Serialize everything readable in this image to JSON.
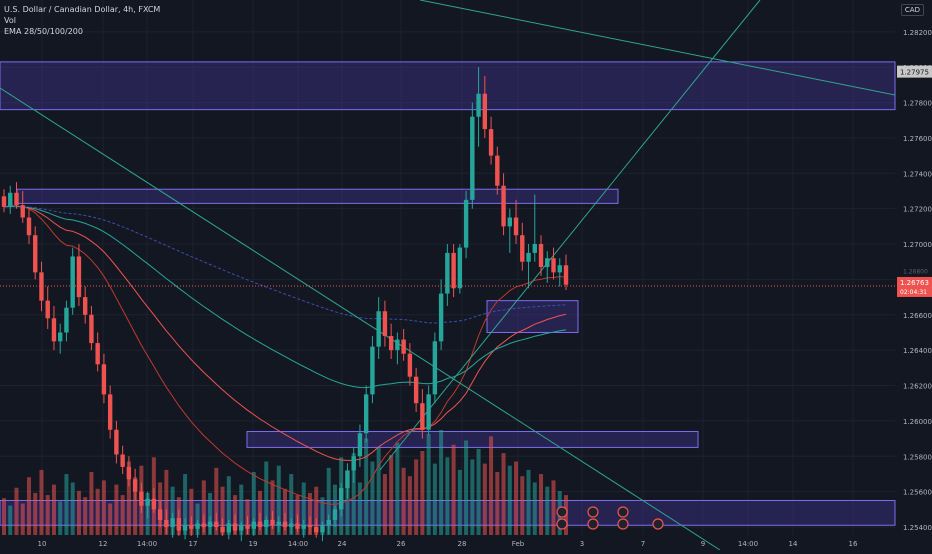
{
  "legend": {
    "symbol": "U.S. Dollar / Canadian Dollar, 4h, FXCM",
    "volume": "Vol",
    "ema": "EMA 28/50/100/200"
  },
  "currency_badge": "CAD",
  "colors": {
    "background": "#131722",
    "up": "#26a69a",
    "down": "#ef5350",
    "zone_fill": "#4a3aa8",
    "zone_stroke": "#7e6cf0",
    "ema28": "#c0392b",
    "ema50": "#ef5350",
    "ema100": "#26a69a",
    "ema200": "#3a4fb0",
    "trendline": "#2ea58e",
    "grid": "#1e222d",
    "axis_text": "#b2b5be"
  },
  "chart_data": {
    "type": "candlestick",
    "symbol": "U.S. Dollar / Canadian Dollar",
    "interval": "4h",
    "source": "FXCM",
    "y_axis": {
      "tick_labels": [
        "1.28200",
        "1.28000",
        "1.27800",
        "1.27600",
        "1.27400",
        "1.27200",
        "1.27000",
        "1.26800",
        "1.26600",
        "1.26400",
        "1.26200",
        "1.26000",
        "1.25800",
        "1.25600",
        "1.25400"
      ],
      "range": [
        1.2527,
        1.2838
      ]
    },
    "x_axis": {
      "tick_labels": [
        "10",
        "12",
        "14:00",
        "17",
        "19",
        "14:00",
        "24",
        "26",
        "28",
        "Feb",
        "3",
        "7",
        "9",
        "14:00",
        "14",
        "16"
      ]
    },
    "price_labels": [
      {
        "value": "1.27975",
        "color": "#c8c8c8"
      },
      {
        "value": "1.26763",
        "countdown": "02:04:31",
        "color": "#ef5350"
      }
    ],
    "faint_label": "1.26800",
    "zones": [
      {
        "y_top": 1.2803,
        "y_bottom": 1.2776
      },
      {
        "y_top": 1.2731,
        "y_bottom": 1.2723
      },
      {
        "y_top": 1.2668,
        "y_bottom": 1.265
      },
      {
        "y_top": 1.2594,
        "y_bottom": 1.2585
      },
      {
        "y_top": 1.2555,
        "y_bottom": 1.2541
      }
    ],
    "candles": [
      [
        1.2727,
        1.2731,
        1.2718,
        1.2721
      ],
      [
        1.2721,
        1.2733,
        1.2717,
        1.2729
      ],
      [
        1.2729,
        1.2735,
        1.272,
        1.2722
      ],
      [
        1.2722,
        1.273,
        1.2712,
        1.2715
      ],
      [
        1.2715,
        1.272,
        1.27,
        1.2705
      ],
      [
        1.2705,
        1.271,
        1.268,
        1.2684
      ],
      [
        1.2684,
        1.269,
        1.2662,
        1.2668
      ],
      [
        1.2668,
        1.2676,
        1.2652,
        1.2658
      ],
      [
        1.2658,
        1.2665,
        1.264,
        1.2645
      ],
      [
        1.2645,
        1.2655,
        1.2638,
        1.265
      ],
      [
        1.265,
        1.2668,
        1.2645,
        1.2664
      ],
      [
        1.2664,
        1.2698,
        1.266,
        1.2693
      ],
      [
        1.2693,
        1.27,
        1.2665,
        1.267
      ],
      [
        1.267,
        1.2676,
        1.2655,
        1.266
      ],
      [
        1.266,
        1.2665,
        1.264,
        1.2644
      ],
      [
        1.2644,
        1.265,
        1.2628,
        1.2632
      ],
      [
        1.2632,
        1.2638,
        1.261,
        1.2615
      ],
      [
        1.2615,
        1.262,
        1.259,
        1.2595
      ],
      [
        1.2595,
        1.26,
        1.2576,
        1.2581
      ],
      [
        1.2581,
        1.2586,
        1.257,
        1.2574
      ],
      [
        1.2574,
        1.258,
        1.2563,
        1.2567
      ],
      [
        1.2567,
        1.2573,
        1.2555,
        1.256
      ],
      [
        1.256,
        1.2565,
        1.2548,
        1.2552
      ],
      [
        1.2552,
        1.256,
        1.2545,
        1.2556
      ],
      [
        1.2556,
        1.2562,
        1.2548,
        1.255
      ],
      [
        1.255,
        1.2555,
        1.254,
        1.2544
      ],
      [
        1.2544,
        1.255,
        1.2536,
        1.254
      ],
      [
        1.254,
        1.2548,
        1.2534,
        1.2545
      ],
      [
        1.2545,
        1.255,
        1.2535,
        1.2538
      ],
      [
        1.2538,
        1.2545,
        1.2533,
        1.2541
      ],
      [
        1.2541,
        1.2546,
        1.2535,
        1.2539
      ],
      [
        1.2539,
        1.2544,
        1.2534,
        1.2542
      ],
      [
        1.2542,
        1.2547,
        1.2537,
        1.254
      ],
      [
        1.254,
        1.2546,
        1.2536,
        1.2543
      ],
      [
        1.2543,
        1.2548,
        1.2538,
        1.254
      ],
      [
        1.254,
        1.2545,
        1.2535,
        1.2537
      ],
      [
        1.2537,
        1.2544,
        1.2533,
        1.2542
      ],
      [
        1.2542,
        1.2547,
        1.2536,
        1.2538
      ],
      [
        1.2538,
        1.2543,
        1.2532,
        1.2541
      ],
      [
        1.2541,
        1.2546,
        1.2536,
        1.2539
      ],
      [
        1.2539,
        1.2545,
        1.2535,
        1.2543
      ],
      [
        1.2543,
        1.2548,
        1.2538,
        1.254
      ],
      [
        1.254,
        1.2546,
        1.2536,
        1.2544
      ],
      [
        1.2544,
        1.2549,
        1.2539,
        1.2541
      ],
      [
        1.2541,
        1.2546,
        1.2537,
        1.2543
      ],
      [
        1.2543,
        1.2548,
        1.2538,
        1.254
      ],
      [
        1.254,
        1.2545,
        1.2536,
        1.2542
      ],
      [
        1.2542,
        1.2547,
        1.2537,
        1.2539
      ],
      [
        1.2539,
        1.2544,
        1.2534,
        1.2541
      ],
      [
        1.2541,
        1.2546,
        1.2536,
        1.254
      ],
      [
        1.254,
        1.2545,
        1.2534,
        1.2537
      ],
      [
        1.2537,
        1.2543,
        1.2532,
        1.2541
      ],
      [
        1.2541,
        1.2547,
        1.2536,
        1.2544
      ],
      [
        1.2544,
        1.2552,
        1.254,
        1.255
      ],
      [
        1.255,
        1.2565,
        1.2546,
        1.2562
      ],
      [
        1.2562,
        1.2576,
        1.2556,
        1.2572
      ],
      [
        1.2572,
        1.2585,
        1.2565,
        1.258
      ],
      [
        1.258,
        1.2598,
        1.2574,
        1.2593
      ],
      [
        1.2593,
        1.262,
        1.2588,
        1.2615
      ],
      [
        1.2615,
        1.2648,
        1.261,
        1.2642
      ],
      [
        1.2642,
        1.267,
        1.2635,
        1.2662
      ],
      [
        1.2662,
        1.2668,
        1.2642,
        1.2648
      ],
      [
        1.2648,
        1.2655,
        1.2635,
        1.264
      ],
      [
        1.264,
        1.265,
        1.2632,
        1.2646
      ],
      [
        1.2646,
        1.2652,
        1.2634,
        1.2638
      ],
      [
        1.2638,
        1.2644,
        1.262,
        1.2625
      ],
      [
        1.2625,
        1.263,
        1.2605,
        1.261
      ],
      [
        1.261,
        1.2618,
        1.259,
        1.2595
      ],
      [
        1.2595,
        1.262,
        1.2592,
        1.2615
      ],
      [
        1.2615,
        1.265,
        1.261,
        1.2645
      ],
      [
        1.2645,
        1.268,
        1.264,
        1.2672
      ],
      [
        1.2672,
        1.27,
        1.2665,
        1.2695
      ],
      [
        1.2695,
        1.27,
        1.267,
        1.2675
      ],
      [
        1.2675,
        1.27,
        1.2672,
        1.2698
      ],
      [
        1.2698,
        1.273,
        1.2692,
        1.2725
      ],
      [
        1.2725,
        1.278,
        1.272,
        1.2772
      ],
      [
        1.2772,
        1.28,
        1.2755,
        1.2785
      ],
      [
        1.2785,
        1.2795,
        1.276,
        1.2765
      ],
      [
        1.2765,
        1.2772,
        1.2745,
        1.275
      ],
      [
        1.275,
        1.2755,
        1.2728,
        1.2733
      ],
      [
        1.2733,
        1.274,
        1.2705,
        1.271
      ],
      [
        1.271,
        1.272,
        1.2695,
        1.2715
      ],
      [
        1.2715,
        1.2725,
        1.27,
        1.2705
      ],
      [
        1.2705,
        1.2712,
        1.2685,
        1.269
      ],
      [
        1.269,
        1.27,
        1.2675,
        1.2695
      ],
      [
        1.2695,
        1.2728,
        1.269,
        1.27
      ],
      [
        1.27,
        1.2705,
        1.2682,
        1.2687
      ],
      [
        1.2687,
        1.2696,
        1.2678,
        1.2692
      ],
      [
        1.2692,
        1.2698,
        1.268,
        1.2684
      ],
      [
        1.2684,
        1.2692,
        1.2676,
        1.2688
      ],
      [
        1.2688,
        1.2694,
        1.2674,
        1.2677
      ]
    ],
    "volumes": [
      35,
      28,
      45,
      30,
      55,
      40,
      62,
      38,
      48,
      32,
      58,
      50,
      42,
      36,
      60,
      44,
      52,
      30,
      48,
      38,
      70,
      55,
      66,
      40,
      74,
      50,
      62,
      46,
      36,
      58,
      44,
      30,
      52,
      40,
      64,
      46,
      56,
      38,
      48,
      34,
      60,
      42,
      70,
      52,
      66,
      44,
      58,
      38,
      50,
      40,
      46,
      36,
      64,
      48,
      74,
      60,
      78,
      50,
      92,
      70,
      84,
      58,
      76,
      88,
      64,
      56,
      72,
      80,
      96,
      68,
      100,
      74,
      86,
      62,
      90,
      72,
      82,
      68,
      94,
      60,
      78,
      66,
      70,
      56,
      62,
      50,
      58,
      46,
      52,
      42,
      38
    ]
  }
}
